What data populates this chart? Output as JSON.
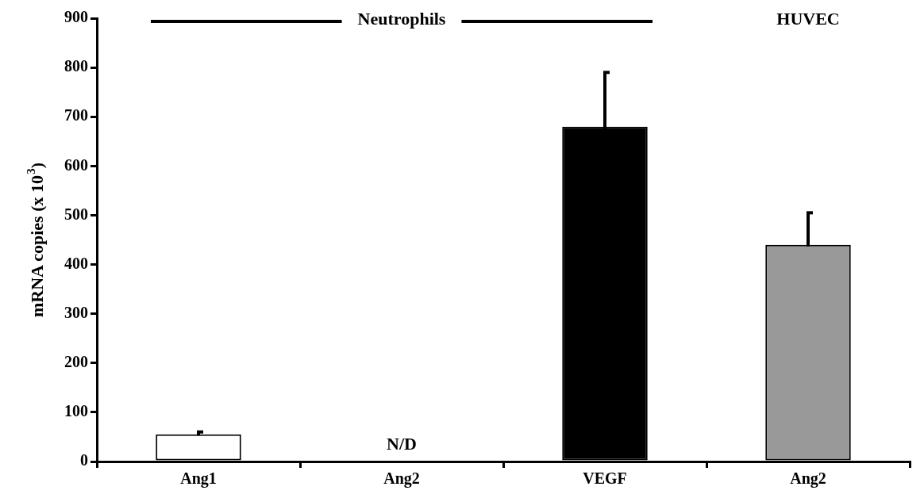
{
  "chart_data": {
    "type": "bar",
    "categories": [
      "Ang1",
      "Ang2",
      "VEGF",
      "Ang2"
    ],
    "values": [
      55,
      null,
      680,
      440
    ],
    "errors": [
      5,
      null,
      110,
      65
    ],
    "value_labels": [
      null,
      "N/D",
      null,
      null
    ],
    "colors": [
      "#ffffff",
      "#ffffff",
      "#000000",
      "#999999"
    ],
    "ylabel": "mRNA copies (x 10$^{3}$)",
    "annotations": [
      "Neutrophils",
      "HUVEC"
    ],
    "ylim": [
      0,
      900
    ],
    "yticks": [
      0,
      100,
      200,
      300,
      400,
      500,
      600,
      700,
      800,
      900
    ],
    "grid": false,
    "legend": false
  }
}
